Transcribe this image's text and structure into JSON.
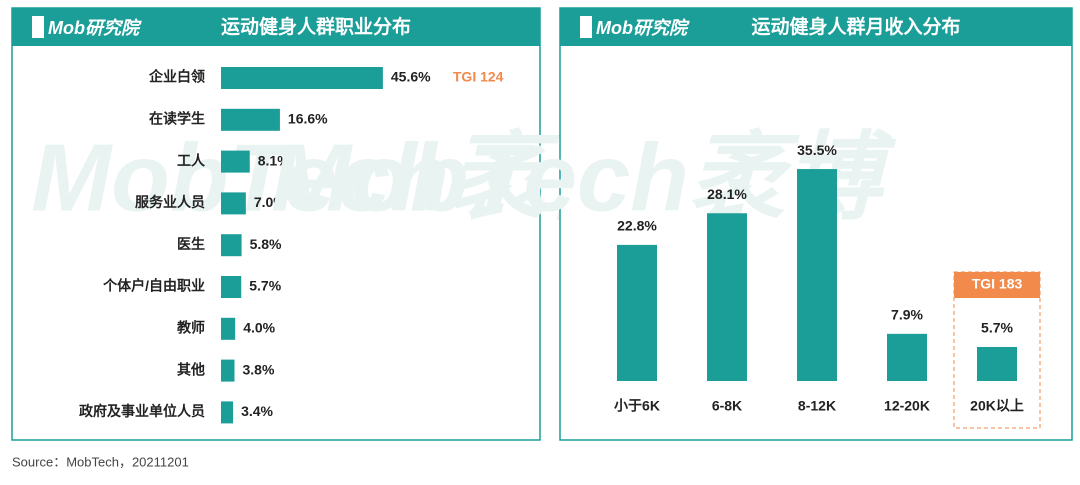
{
  "brand": "Mob研究院",
  "watermark": "MobTech袤博",
  "source": "Source：MobTech，20211201",
  "chart_data": [
    {
      "type": "bar",
      "orientation": "horizontal",
      "title": "运动健身人群职业分布",
      "categories": [
        "企业白领",
        "在读学生",
        "工人",
        "服务业人员",
        "医生",
        "个体户/自由职业",
        "教师",
        "其他",
        "政府及事业单位人员"
      ],
      "values": [
        45.6,
        16.6,
        8.1,
        7.0,
        5.8,
        5.7,
        4.0,
        3.8,
        3.4
      ],
      "value_labels": [
        "45.6%",
        "16.6%",
        "8.1%",
        "7.0%",
        "5.8%",
        "5.7%",
        "4.0%",
        "3.8%",
        "3.4%"
      ],
      "color": "#1b9d98",
      "annotation": "TGI 124",
      "annotation_color": "#f28a4c"
    },
    {
      "type": "bar",
      "orientation": "vertical",
      "title": "运动健身人群月收入分布",
      "categories": [
        "小于6K",
        "6-8K",
        "8-12K",
        "12-20K",
        "20K以上"
      ],
      "values": [
        22.8,
        28.1,
        35.5,
        7.9,
        5.7
      ],
      "value_labels": [
        "22.8%",
        "28.1%",
        "35.5%",
        "7.9%",
        "5.7%"
      ],
      "color": "#1b9d98",
      "annotation": "TGI 183",
      "annotation_color": "#f28a4c"
    }
  ]
}
